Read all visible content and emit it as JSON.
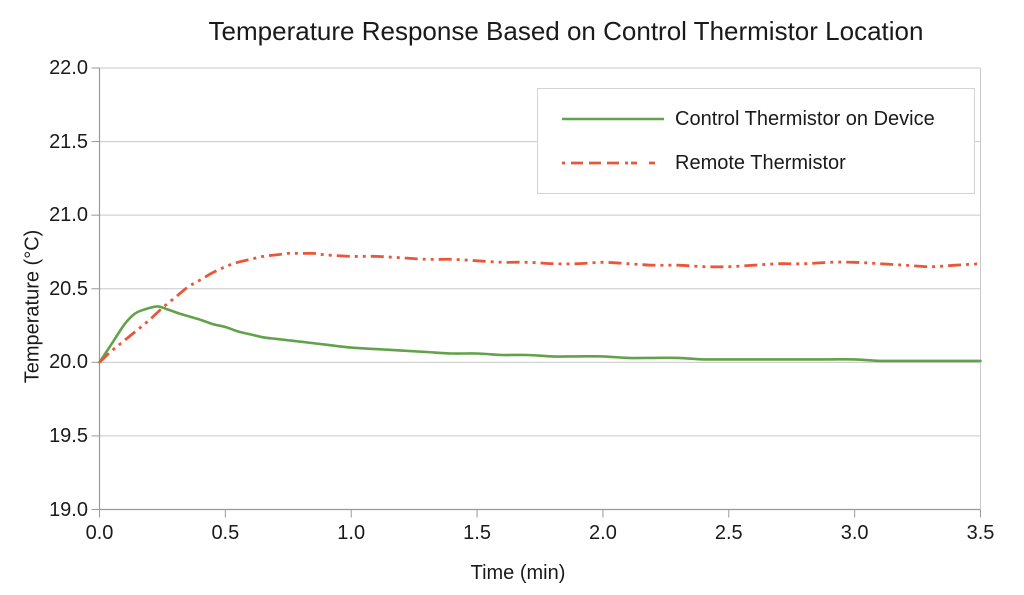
{
  "page": {
    "background": "#ffffff"
  },
  "chart_data": {
    "type": "line",
    "title": "Temperature Response Based on Control Thermistor Location",
    "xlabel": "Time (min)",
    "ylabel": "Temperature (°C)",
    "xlim": [
      0,
      3.5
    ],
    "ylim": [
      19.0,
      22.0
    ],
    "x_ticks": [
      "0.0",
      "0.5",
      "1.0",
      "1.5",
      "2.0",
      "2.5",
      "3.0",
      "3.5"
    ],
    "y_ticks": [
      "22.0",
      "21.5",
      "21.0",
      "20.5",
      "20.0",
      "19.5",
      "19.0"
    ],
    "grid": "horizontal",
    "legend_position": "top-right-inside",
    "colors": {
      "gridline": "#c9c9c9",
      "axis": "#9a9a9a",
      "text": "#1a1a1a"
    },
    "series": [
      {
        "name": "Control Thermistor on Device",
        "color": "#61a24a",
        "style": "solid",
        "points": [
          [
            0.0,
            20.0
          ],
          [
            0.05,
            20.13
          ],
          [
            0.1,
            20.26
          ],
          [
            0.14,
            20.33
          ],
          [
            0.18,
            20.36
          ],
          [
            0.23,
            20.38
          ],
          [
            0.27,
            20.36
          ],
          [
            0.32,
            20.33
          ],
          [
            0.36,
            20.31
          ],
          [
            0.4,
            20.29
          ],
          [
            0.45,
            20.26
          ],
          [
            0.5,
            20.24
          ],
          [
            0.55,
            20.21
          ],
          [
            0.6,
            20.19
          ],
          [
            0.65,
            20.17
          ],
          [
            0.7,
            20.16
          ],
          [
            0.75,
            20.15
          ],
          [
            0.8,
            20.14
          ],
          [
            0.9,
            20.12
          ],
          [
            1.0,
            20.1
          ],
          [
            1.1,
            20.09
          ],
          [
            1.2,
            20.08
          ],
          [
            1.3,
            20.07
          ],
          [
            1.4,
            20.06
          ],
          [
            1.5,
            20.06
          ],
          [
            1.6,
            20.05
          ],
          [
            1.7,
            20.05
          ],
          [
            1.8,
            20.04
          ],
          [
            1.9,
            20.04
          ],
          [
            2.0,
            20.04
          ],
          [
            2.1,
            20.03
          ],
          [
            2.2,
            20.03
          ],
          [
            2.3,
            20.03
          ],
          [
            2.4,
            20.02
          ],
          [
            2.5,
            20.02
          ],
          [
            2.6,
            20.02
          ],
          [
            2.7,
            20.02
          ],
          [
            2.8,
            20.02
          ],
          [
            2.9,
            20.02
          ],
          [
            3.0,
            20.02
          ],
          [
            3.1,
            20.01
          ],
          [
            3.2,
            20.01
          ],
          [
            3.3,
            20.01
          ],
          [
            3.4,
            20.01
          ],
          [
            3.5,
            20.01
          ]
        ]
      },
      {
        "name": "Remote Thermistor",
        "color": "#e8573a",
        "style": "dash-dot-dot",
        "points": [
          [
            0.0,
            20.0
          ],
          [
            0.05,
            20.08
          ],
          [
            0.1,
            20.15
          ],
          [
            0.15,
            20.22
          ],
          [
            0.2,
            20.29
          ],
          [
            0.25,
            20.37
          ],
          [
            0.3,
            20.44
          ],
          [
            0.35,
            20.51
          ],
          [
            0.4,
            20.56
          ],
          [
            0.45,
            20.61
          ],
          [
            0.5,
            20.65
          ],
          [
            0.55,
            20.68
          ],
          [
            0.6,
            20.7
          ],
          [
            0.65,
            20.72
          ],
          [
            0.7,
            20.73
          ],
          [
            0.75,
            20.74
          ],
          [
            0.8,
            20.74
          ],
          [
            0.85,
            20.74
          ],
          [
            0.9,
            20.73
          ],
          [
            1.0,
            20.72
          ],
          [
            1.1,
            20.72
          ],
          [
            1.2,
            20.71
          ],
          [
            1.3,
            20.7
          ],
          [
            1.4,
            20.7
          ],
          [
            1.5,
            20.69
          ],
          [
            1.6,
            20.68
          ],
          [
            1.7,
            20.68
          ],
          [
            1.8,
            20.67
          ],
          [
            1.9,
            20.67
          ],
          [
            2.0,
            20.68
          ],
          [
            2.1,
            20.67
          ],
          [
            2.2,
            20.66
          ],
          [
            2.3,
            20.66
          ],
          [
            2.4,
            20.65
          ],
          [
            2.5,
            20.65
          ],
          [
            2.6,
            20.66
          ],
          [
            2.7,
            20.67
          ],
          [
            2.8,
            20.67
          ],
          [
            2.9,
            20.68
          ],
          [
            3.0,
            20.68
          ],
          [
            3.1,
            20.67
          ],
          [
            3.2,
            20.66
          ],
          [
            3.3,
            20.65
          ],
          [
            3.4,
            20.66
          ],
          [
            3.5,
            20.67
          ]
        ]
      }
    ]
  }
}
